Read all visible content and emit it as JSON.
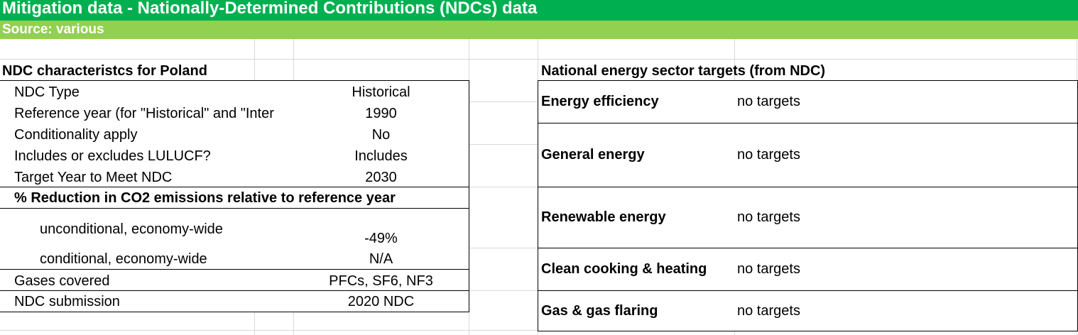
{
  "header": {
    "title": "Mitigation data - Nationally-Determined Contributions (NDCs) data",
    "source": "Source: various"
  },
  "ndc": {
    "heading": "NDC characteristcs for Poland",
    "rows": [
      {
        "label": "NDC Type",
        "value": "Historical"
      },
      {
        "label": "Reference year (for \"Historical\" and \"Inter",
        "value": "1990"
      },
      {
        "label": "Conditionality apply",
        "value": "No"
      },
      {
        "label": "Includes or excludes LULUCF?",
        "value": "Includes"
      },
      {
        "label": "Target Year to Meet NDC",
        "value": "2030"
      }
    ],
    "reduction_heading": "% Reduction in CO2 emissions relative to reference year",
    "reduction_rows": [
      {
        "label": "unconditional, economy-wide",
        "value": "-49%"
      },
      {
        "label": "conditional, economy-wide",
        "value": "N/A"
      }
    ],
    "gases": {
      "label": "Gases covered",
      "value": "PFCs, SF6, NF3"
    },
    "submission": {
      "label": "NDC submission",
      "value": "2020 NDC"
    }
  },
  "energy": {
    "heading": "National energy sector targets (from NDC)",
    "rows": [
      {
        "label": "Energy efficiency",
        "value": "no targets"
      },
      {
        "label": "General energy",
        "value": "no targets"
      },
      {
        "label": "Renewable energy",
        "value": "no targets"
      },
      {
        "label": "Clean cooking & heating",
        "value": "no targets"
      },
      {
        "label": "Gas & gas flaring",
        "value": "no targets"
      }
    ]
  }
}
